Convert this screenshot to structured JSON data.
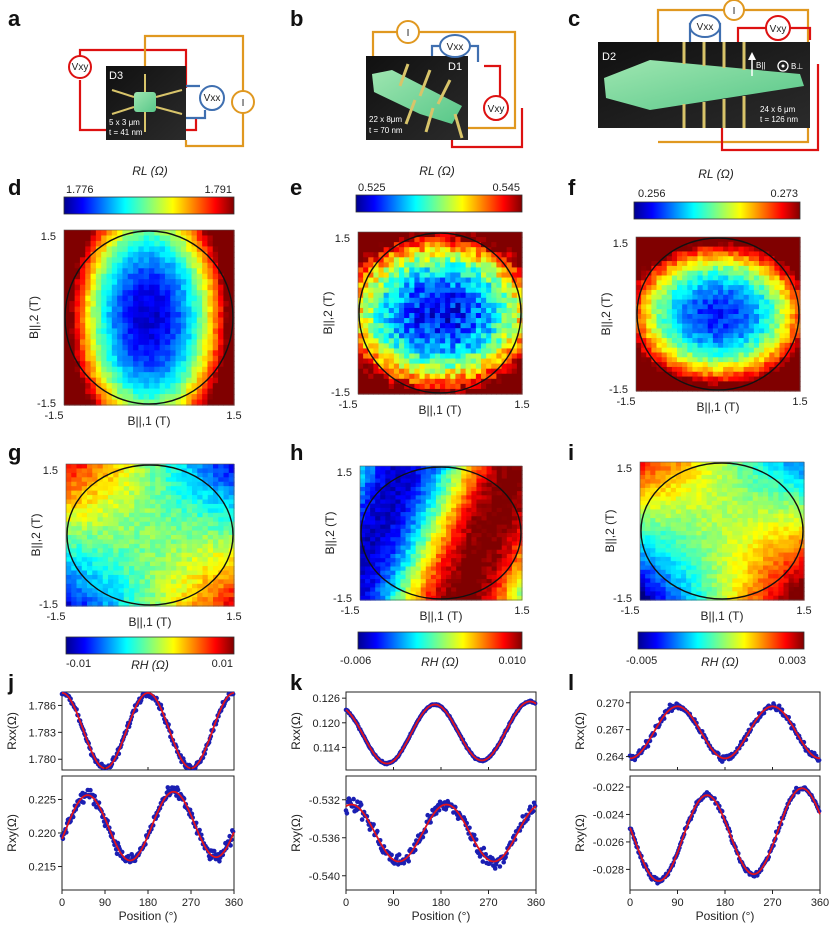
{
  "figure": {
    "panel_letters": [
      "a",
      "b",
      "c",
      "d",
      "e",
      "f",
      "g",
      "h",
      "i",
      "j",
      "k",
      "l"
    ],
    "devices": [
      {
        "name": "D3",
        "size": "5 x 3 μm",
        "thickness": "t = 41 nm",
        "meters": [
          "Vxy",
          "Vxx",
          "I"
        ]
      },
      {
        "name": "D1",
        "size": "22 x 8μm",
        "thickness": "t = 70 nm",
        "meters": [
          "I",
          "Vxx",
          "Vxy"
        ]
      },
      {
        "name": "D2",
        "size": "24 x 6 μm",
        "thickness": "t = 126 nm",
        "meters": [
          "Vxx",
          "I",
          "Vxy"
        ],
        "field_labels": [
          "B||",
          "B⊥"
        ]
      }
    ],
    "map_axes": {
      "xlabel": "B||,1 (T)",
      "ylabel": "B||,2 (T)",
      "tick_min": "-1.5",
      "tick_max": "1.5"
    },
    "colorbar_titles": {
      "RL": "RL (Ω)",
      "RH": "RH (Ω)"
    }
  },
  "chart_data": [
    {
      "panel": "d",
      "type": "heatmap",
      "quantity": "R_L (Ω)",
      "cmin": 1.776,
      "cmax": 1.791,
      "cmin_label": "1.776",
      "cmax_label": "1.791",
      "xlim": [
        -1.5,
        1.5
      ],
      "ylim": [
        -1.5,
        1.5
      ],
      "circle_radius_T": 1.5,
      "pattern": "elongated minimum at center"
    },
    {
      "panel": "e",
      "type": "heatmap",
      "quantity": "R_L (Ω)",
      "cmin": 0.525,
      "cmax": 0.545,
      "cmin_label": "0.525",
      "cmax_label": "0.545",
      "xlim": [
        -1.5,
        1.5
      ],
      "ylim": [
        -1.5,
        1.5
      ],
      "circle_radius_T": 1.5,
      "pattern": "broad minimum at center"
    },
    {
      "panel": "f",
      "type": "heatmap",
      "quantity": "R_L (Ω)",
      "cmin": 0.256,
      "cmax": 0.273,
      "cmin_label": "0.256",
      "cmax_label": "0.273",
      "xlim": [
        -1.5,
        1.5
      ],
      "ylim": [
        -1.5,
        1.5
      ],
      "circle_radius_T": 1.5,
      "pattern": "minimum at center"
    },
    {
      "panel": "g",
      "type": "heatmap",
      "quantity": "R_H (Ω)",
      "cmin": -0.01,
      "cmax": 0.01,
      "cmin_label": "-0.01",
      "cmax_label": "0.01",
      "xlim": [
        -1.5,
        1.5
      ],
      "ylim": [
        -1.5,
        1.5
      ],
      "circle_radius_T": 1.5,
      "pattern": "quadrupolar"
    },
    {
      "panel": "h",
      "type": "heatmap",
      "quantity": "R_H (Ω)",
      "cmin": -0.006,
      "cmax": 0.01,
      "cmin_label": "-0.006",
      "cmax_label": "0.010",
      "xlim": [
        -1.5,
        1.5
      ],
      "ylim": [
        -1.5,
        1.5
      ],
      "circle_radius_T": 1.5,
      "pattern": "diagonal bands"
    },
    {
      "panel": "i",
      "type": "heatmap",
      "quantity": "R_H (Ω)",
      "cmin": -0.005,
      "cmax": 0.003,
      "cmin_label": "-0.005",
      "cmax_label": "0.003",
      "xlim": [
        -1.5,
        1.5
      ],
      "ylim": [
        -1.5,
        1.5
      ],
      "circle_radius_T": 1.5,
      "pattern": "quadrupolar"
    },
    {
      "panel": "j",
      "type": "scatter",
      "xlabel": "Position (°)",
      "xlim": [
        0,
        360
      ],
      "xticks": [
        "0",
        "90",
        "180",
        "270",
        "360"
      ],
      "subplots": [
        {
          "ylabel": "Rxx(Ω)",
          "ylim": [
            1.7788,
            1.7875
          ],
          "yticks": [
            1.78,
            1.783,
            1.786
          ],
          "ytick_labels": [
            "1.780",
            "1.783",
            "1.786"
          ],
          "fit": {
            "mean": 1.7832,
            "amp": 0.0042,
            "phase_deg": 0,
            "period_deg": 180
          },
          "noise": 0.0004
        },
        {
          "ylabel": "Rxy(Ω)",
          "ylim": [
            0.2115,
            0.2285
          ],
          "yticks": [
            0.215,
            0.22,
            0.225
          ],
          "ytick_labels": [
            "0.215",
            "0.220",
            "0.225"
          ],
          "fit": {
            "mean": 0.221,
            "amp": 0.005,
            "phase_deg": 53,
            "period_deg": 180,
            "drift_per_360": 0.001
          },
          "noise": 0.0009
        }
      ]
    },
    {
      "panel": "k",
      "type": "scatter",
      "xlabel": "Position (°)",
      "xlim": [
        0,
        360
      ],
      "xticks": [
        "0",
        "90",
        "180",
        "270",
        "360"
      ],
      "subplots": [
        {
          "ylabel": "Rxx(Ω)",
          "ylim": [
            0.1085,
            0.1275
          ],
          "yticks": [
            0.114,
            0.12,
            0.126
          ],
          "ytick_labels": [
            "0.114",
            "0.120",
            "0.126"
          ],
          "fit": {
            "mean": 0.1175,
            "amp": 0.007,
            "phase_deg": 168,
            "period_deg": 180,
            "drift_per_360": 0.0015
          },
          "noise": 0.0002
        },
        {
          "ylabel": "Rxy(Ω)",
          "ylim": [
            -0.5415,
            -0.5295
          ],
          "yticks": [
            -0.54,
            -0.536,
            -0.532
          ],
          "ytick_labels": [
            "-0.540",
            "-0.536",
            "-0.532"
          ],
          "fit": {
            "mean": -0.5355,
            "amp": 0.003,
            "phase_deg": 10,
            "period_deg": 180
          },
          "noise": 0.0008
        }
      ]
    },
    {
      "panel": "l",
      "type": "scatter",
      "xlabel": "Position (°)",
      "xlim": [
        0,
        360
      ],
      "xticks": [
        "0",
        "90",
        "180",
        "270",
        "360"
      ],
      "subplots": [
        {
          "ylabel": "Rxx(Ω)",
          "ylim": [
            0.2625,
            0.2712
          ],
          "yticks": [
            0.264,
            0.267,
            0.27
          ],
          "ytick_labels": [
            "0.264",
            "0.267",
            "0.270"
          ],
          "fit": {
            "mean": 0.2667,
            "amp": 0.0029,
            "phase_deg": 90,
            "period_deg": 180
          },
          "noise": 0.0004
        },
        {
          "ylabel": "Rxy(Ω)",
          "ylim": [
            -0.0295,
            -0.0212
          ],
          "yticks": [
            -0.028,
            -0.026,
            -0.024,
            -0.022
          ],
          "ytick_labels": [
            "-0.028",
            "-0.026",
            "-0.024",
            "-0.022"
          ],
          "fit": {
            "mean": -0.0255,
            "amp": 0.003,
            "phase_deg": 145,
            "period_deg": 180,
            "drift_per_360": 0.001
          },
          "noise": 0.0002
        }
      ]
    }
  ]
}
